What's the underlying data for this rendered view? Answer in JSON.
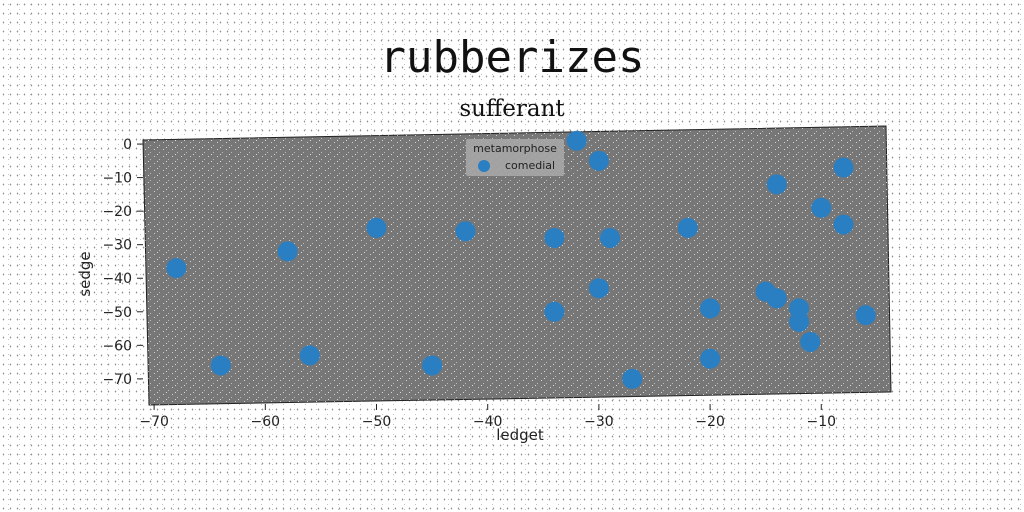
{
  "title": "rubberizes",
  "subtitle": "sufferant",
  "colors": {
    "plot_background": "#777777",
    "marker": "#2a7ec2",
    "legend_background": "#a6a6a6"
  },
  "chart_data": {
    "type": "scatter",
    "title": "rubberizes",
    "subtitle": "sufferant",
    "xlabel": "ledget",
    "ylabel": "sedge",
    "xlim": [
      -71,
      -4
    ],
    "ylim": [
      -76,
      3
    ],
    "xticks": [
      -70,
      -60,
      -50,
      -40,
      -30,
      -20,
      -10
    ],
    "yticks": [
      0,
      -10,
      -20,
      -30,
      -40,
      -50,
      -60,
      -70
    ],
    "grid": false,
    "legend": {
      "title": "metamorphose",
      "placement": "top-center",
      "entries": [
        "comedial"
      ]
    },
    "series": [
      {
        "name": "comedial",
        "color": "#2a7ec2",
        "points": [
          {
            "x": -68,
            "y": -37
          },
          {
            "x": -64,
            "y": -66
          },
          {
            "x": -58,
            "y": -32
          },
          {
            "x": -56,
            "y": -63
          },
          {
            "x": -50,
            "y": -25
          },
          {
            "x": -45,
            "y": -66
          },
          {
            "x": -42,
            "y": -26
          },
          {
            "x": -34,
            "y": -28
          },
          {
            "x": -34,
            "y": -50
          },
          {
            "x": -32,
            "y": 1
          },
          {
            "x": -30,
            "y": -5
          },
          {
            "x": -30,
            "y": -43
          },
          {
            "x": -29,
            "y": -28
          },
          {
            "x": -27,
            "y": -70
          },
          {
            "x": -22,
            "y": -25
          },
          {
            "x": -20,
            "y": -49
          },
          {
            "x": -20,
            "y": -64
          },
          {
            "x": -15,
            "y": -44
          },
          {
            "x": -14,
            "y": -46
          },
          {
            "x": -14,
            "y": -12
          },
          {
            "x": -12,
            "y": -49
          },
          {
            "x": -12,
            "y": -53
          },
          {
            "x": -11,
            "y": -59
          },
          {
            "x": -10,
            "y": -19
          },
          {
            "x": -8,
            "y": -7
          },
          {
            "x": -8,
            "y": -24
          },
          {
            "x": -6,
            "y": -51
          }
        ]
      }
    ]
  }
}
